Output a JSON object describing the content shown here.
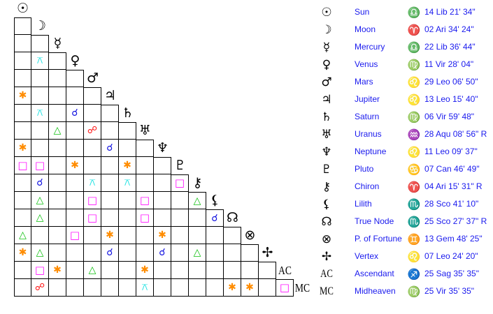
{
  "bodies": [
    {
      "name": "Sun",
      "glyph": "☉",
      "sign_icon": "libra-icon",
      "sign": "♎",
      "position": "14 Lib 21' 34\""
    },
    {
      "name": "Moon",
      "glyph": "☽",
      "sign_icon": "aries-icon",
      "sign": "♈",
      "position": "02 Ari 34' 24\""
    },
    {
      "name": "Mercury",
      "glyph": "☿",
      "sign_icon": "libra-icon",
      "sign": "♎",
      "position": "22 Lib 36' 44\""
    },
    {
      "name": "Venus",
      "glyph": "♀",
      "sign_icon": "virgo-icon",
      "sign": "♍",
      "position": "11 Vir 28' 04\""
    },
    {
      "name": "Mars",
      "glyph": "♂",
      "sign_icon": "leo-icon",
      "sign": "♌",
      "position": "29 Leo 06' 50\""
    },
    {
      "name": "Jupiter",
      "glyph": "♃",
      "sign_icon": "leo-icon",
      "sign": "♌",
      "position": "13 Leo 15' 40\""
    },
    {
      "name": "Saturn",
      "glyph": "♄",
      "sign_icon": "virgo-icon",
      "sign": "♍",
      "position": "06 Vir 59' 48\""
    },
    {
      "name": "Uranus",
      "glyph": "♅",
      "sign_icon": "aquarius-icon",
      "sign": "♒",
      "position": "28 Aqu 08' 56\" R"
    },
    {
      "name": "Neptune",
      "glyph": "♆",
      "sign_icon": "leo-icon",
      "sign": "♌",
      "position": "11 Leo 09' 37\""
    },
    {
      "name": "Pluto",
      "glyph": "♇",
      "sign_icon": "cancer-icon",
      "sign": "♋",
      "position": "07 Can 46' 49\""
    },
    {
      "name": "Chiron",
      "glyph": "⚷",
      "sign_icon": "aries-icon",
      "sign": "♈",
      "position": "04 Ari 15' 31\" R"
    },
    {
      "name": "Lilith",
      "glyph": "⚸",
      "sign_icon": "scorpio-icon",
      "sign": "♏",
      "position": "28 Sco 41' 10\""
    },
    {
      "name": "True Node",
      "glyph": "☊",
      "sign_icon": "scorpio-icon",
      "sign": "♏",
      "position": "25 Sco 27' 37\" R"
    },
    {
      "name": "P. of Fortune",
      "glyph": "⊗",
      "sign_icon": "gemini-icon",
      "sign": "♊",
      "position": "13 Gem 48' 25\""
    },
    {
      "name": "Vertex",
      "glyph": "✢",
      "sign_icon": "leo-icon",
      "sign": "♌",
      "position": "07 Leo 24' 20\""
    },
    {
      "name": "Ascendant",
      "glyph": "AC",
      "sign_icon": "sagittarius-icon",
      "sign": "♐",
      "position": "25 Sag 35' 35\""
    },
    {
      "name": "Midheaven",
      "glyph": "MC",
      "sign_icon": "virgo-icon",
      "sign": "♍",
      "position": "25 Vir 35' 35\""
    }
  ],
  "aspect_styles": {
    "conjunction": {
      "glyph": "☌",
      "color": "#1010e0"
    },
    "opposition": {
      "glyph": "☍",
      "color": "#ff1010"
    },
    "trine": {
      "glyph": "△",
      "color": "#10c010"
    },
    "square": {
      "glyph": "□",
      "color": "#ff10ff"
    },
    "sextile": {
      "glyph": "✱",
      "color": "#ff8c00"
    },
    "quincunx": {
      "glyph": "⚻",
      "color": "#10e0e0"
    }
  },
  "aspects": [
    [
      "Venus",
      "Moon",
      "quincunx"
    ],
    [
      "Jupiter",
      "Sun",
      "sextile"
    ],
    [
      "Saturn",
      "Moon",
      "quincunx"
    ],
    [
      "Saturn",
      "Venus",
      "conjunction"
    ],
    [
      "Uranus",
      "Mercury",
      "trine"
    ],
    [
      "Uranus",
      "Mars",
      "opposition"
    ],
    [
      "Neptune",
      "Sun",
      "sextile"
    ],
    [
      "Neptune",
      "Jupiter",
      "conjunction"
    ],
    [
      "Pluto",
      "Sun",
      "square"
    ],
    [
      "Pluto",
      "Moon",
      "square"
    ],
    [
      "Pluto",
      "Venus",
      "sextile"
    ],
    [
      "Pluto",
      "Saturn",
      "sextile"
    ],
    [
      "Chiron",
      "Moon",
      "conjunction"
    ],
    [
      "Chiron",
      "Mars",
      "quincunx"
    ],
    [
      "Chiron",
      "Saturn",
      "quincunx"
    ],
    [
      "Chiron",
      "Pluto",
      "square"
    ],
    [
      "Lilith",
      "Moon",
      "trine"
    ],
    [
      "Lilith",
      "Mars",
      "square"
    ],
    [
      "Lilith",
      "Uranus",
      "square"
    ],
    [
      "Lilith",
      "Chiron",
      "trine"
    ],
    [
      "True Node",
      "Moon",
      "trine"
    ],
    [
      "True Node",
      "Mars",
      "square"
    ],
    [
      "True Node",
      "Uranus",
      "square"
    ],
    [
      "True Node",
      "Lilith",
      "conjunction"
    ],
    [
      "P. of Fortune",
      "Sun",
      "trine"
    ],
    [
      "P. of Fortune",
      "Venus",
      "square"
    ],
    [
      "P. of Fortune",
      "Jupiter",
      "sextile"
    ],
    [
      "P. of Fortune",
      "Neptune",
      "sextile"
    ],
    [
      "Vertex",
      "Sun",
      "sextile"
    ],
    [
      "Vertex",
      "Moon",
      "trine"
    ],
    [
      "Vertex",
      "Jupiter",
      "conjunction"
    ],
    [
      "Vertex",
      "Neptune",
      "conjunction"
    ],
    [
      "Vertex",
      "Chiron",
      "trine"
    ],
    [
      "Ascendant",
      "Moon",
      "square"
    ],
    [
      "Ascendant",
      "Mercury",
      "sextile"
    ],
    [
      "Ascendant",
      "Mars",
      "trine"
    ],
    [
      "Ascendant",
      "Uranus",
      "sextile"
    ],
    [
      "Midheaven",
      "Moon",
      "opposition"
    ],
    [
      "Midheaven",
      "Uranus",
      "quincunx"
    ],
    [
      "Midheaven",
      "True Node",
      "sextile"
    ],
    [
      "Midheaven",
      "P. of Fortune",
      "sextile"
    ],
    [
      "Midheaven",
      "Ascendant",
      "square"
    ]
  ]
}
